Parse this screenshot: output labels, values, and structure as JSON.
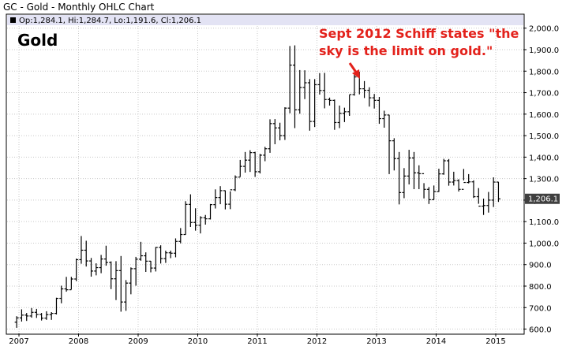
{
  "title": "GC - Gold - Monthly OHLC Chart",
  "ohlc_summary": "Op:1,284.1, Hi:1,284.7, Lo:1,191.6, Cl:1,206.1",
  "symbol_label": "Gold",
  "annotation_line1": "Sept 2012 Schiff states \"the",
  "annotation_line2": "sky is the limit on gold.\"",
  "last_price_label": "1,206.1",
  "colors": {
    "bar": "#000000",
    "grid": "#c8c8c8",
    "header_band": "#e3e3f4",
    "annotation": "#e3211b",
    "last_tag": "#404040"
  },
  "chart_data": {
    "type": "ohlc",
    "interval": "monthly",
    "x_tick_labels": [
      "2007",
      "2008",
      "2009",
      "2010",
      "2011",
      "2012",
      "2013",
      "2014",
      "2015"
    ],
    "y_tick_labels": [
      "600.0",
      "700.0",
      "800.0",
      "900.0",
      "1,000.0",
      "1,100.0",
      "1,200.0",
      "1,300.0",
      "1,400.0",
      "1,500.0",
      "1,600.0",
      "1,700.0",
      "1,800.0",
      "1,900.0",
      "2,000.0"
    ],
    "ylim": [
      580,
      2010
    ],
    "grid": true,
    "start": "2007-01",
    "bars": [
      [
        632,
        660,
        606,
        652
      ],
      [
        652,
        692,
        635,
        665
      ],
      [
        665,
        675,
        638,
        661
      ],
      [
        661,
        698,
        653,
        678
      ],
      [
        678,
        694,
        652,
        668
      ],
      [
        668,
        675,
        640,
        651
      ],
      [
        651,
        683,
        643,
        667
      ],
      [
        667,
        679,
        643,
        673
      ],
      [
        673,
        746,
        668,
        743
      ],
      [
        743,
        802,
        720,
        787
      ],
      [
        787,
        843,
        774,
        783
      ],
      [
        783,
        843,
        784,
        833
      ],
      [
        833,
        928,
        823,
        923
      ],
      [
        923,
        1033,
        904,
        967
      ],
      [
        967,
        1011,
        891,
        917
      ],
      [
        917,
        931,
        844,
        870
      ],
      [
        870,
        906,
        850,
        886
      ],
      [
        886,
        945,
        860,
        926
      ],
      [
        926,
        988,
        895,
        910
      ],
      [
        910,
        915,
        786,
        834
      ],
      [
        834,
        916,
        735,
        872
      ],
      [
        872,
        940,
        681,
        726
      ],
      [
        726,
        828,
        685,
        814
      ],
      [
        814,
        887,
        762,
        881
      ],
      [
        881,
        936,
        802,
        925
      ],
      [
        925,
        1006,
        918,
        941
      ],
      [
        941,
        957,
        866,
        916
      ],
      [
        916,
        917,
        864,
        884
      ],
      [
        884,
        982,
        868,
        980
      ],
      [
        980,
        990,
        905,
        928
      ],
      [
        928,
        965,
        908,
        955
      ],
      [
        955,
        965,
        930,
        953
      ],
      [
        953,
        1022,
        934,
        1008
      ],
      [
        1008,
        1070,
        999,
        1040
      ],
      [
        1040,
        1195,
        1039,
        1180
      ],
      [
        1180,
        1227,
        1075,
        1096
      ],
      [
        1096,
        1162,
        1058,
        1083
      ],
      [
        1083,
        1125,
        1045,
        1118
      ],
      [
        1118,
        1131,
        1086,
        1113
      ],
      [
        1113,
        1182,
        1110,
        1179
      ],
      [
        1179,
        1250,
        1161,
        1212
      ],
      [
        1212,
        1265,
        1181,
        1244
      ],
      [
        1244,
        1245,
        1157,
        1181
      ],
      [
        1181,
        1241,
        1158,
        1248
      ],
      [
        1248,
        1315,
        1242,
        1307
      ],
      [
        1307,
        1387,
        1308,
        1357
      ],
      [
        1357,
        1424,
        1328,
        1386
      ],
      [
        1386,
        1432,
        1331,
        1421
      ],
      [
        1421,
        1425,
        1308,
        1332
      ],
      [
        1332,
        1415,
        1324,
        1409
      ],
      [
        1409,
        1448,
        1381,
        1439
      ],
      [
        1439,
        1576,
        1420,
        1556
      ],
      [
        1556,
        1577,
        1460,
        1536
      ],
      [
        1536,
        1560,
        1478,
        1500
      ],
      [
        1500,
        1632,
        1480,
        1628
      ],
      [
        1628,
        1917,
        1604,
        1828
      ],
      [
        1828,
        1920,
        1535,
        1620
      ],
      [
        1620,
        1805,
        1602,
        1724
      ],
      [
        1724,
        1804,
        1670,
        1746
      ],
      [
        1746,
        1763,
        1523,
        1566
      ],
      [
        1566,
        1763,
        1540,
        1737
      ],
      [
        1737,
        1791,
        1691,
        1710
      ],
      [
        1710,
        1792,
        1627,
        1668
      ],
      [
        1668,
        1677,
        1640,
        1664
      ],
      [
        1664,
        1668,
        1527,
        1561
      ],
      [
        1561,
        1640,
        1535,
        1604
      ],
      [
        1604,
        1630,
        1563,
        1611
      ],
      [
        1611,
        1690,
        1592,
        1691
      ],
      [
        1691,
        1795,
        1686,
        1773
      ],
      [
        1773,
        1797,
        1692,
        1718
      ],
      [
        1718,
        1754,
        1675,
        1711
      ],
      [
        1711,
        1725,
        1635,
        1676
      ],
      [
        1676,
        1694,
        1626,
        1664
      ],
      [
        1664,
        1680,
        1555,
        1579
      ],
      [
        1579,
        1616,
        1537,
        1596
      ],
      [
        1596,
        1597,
        1321,
        1476
      ],
      [
        1476,
        1488,
        1338,
        1393
      ],
      [
        1393,
        1424,
        1180,
        1235
      ],
      [
        1235,
        1349,
        1209,
        1312
      ],
      [
        1312,
        1434,
        1273,
        1396
      ],
      [
        1396,
        1424,
        1251,
        1327
      ],
      [
        1327,
        1362,
        1251,
        1323
      ],
      [
        1323,
        1279,
        1208,
        1250
      ],
      [
        1250,
        1261,
        1182,
        1202
      ],
      [
        1202,
        1268,
        1202,
        1240
      ],
      [
        1240,
        1346,
        1238,
        1322
      ],
      [
        1322,
        1392,
        1318,
        1383
      ],
      [
        1383,
        1391,
        1267,
        1284
      ],
      [
        1284,
        1332,
        1268,
        1291
      ],
      [
        1291,
        1297,
        1240,
        1250
      ],
      [
        1250,
        1345,
        1292,
        1282
      ],
      [
        1282,
        1321,
        1278,
        1285
      ],
      [
        1285,
        1292,
        1210,
        1216
      ],
      [
        1216,
        1256,
        1183,
        1172
      ],
      [
        1172,
        1207,
        1131,
        1175
      ],
      [
        1175,
        1238,
        1142,
        1200
      ],
      [
        1200,
        1306,
        1168,
        1284
      ],
      [
        1284,
        1284.7,
        1191.6,
        1206.1
      ]
    ]
  }
}
